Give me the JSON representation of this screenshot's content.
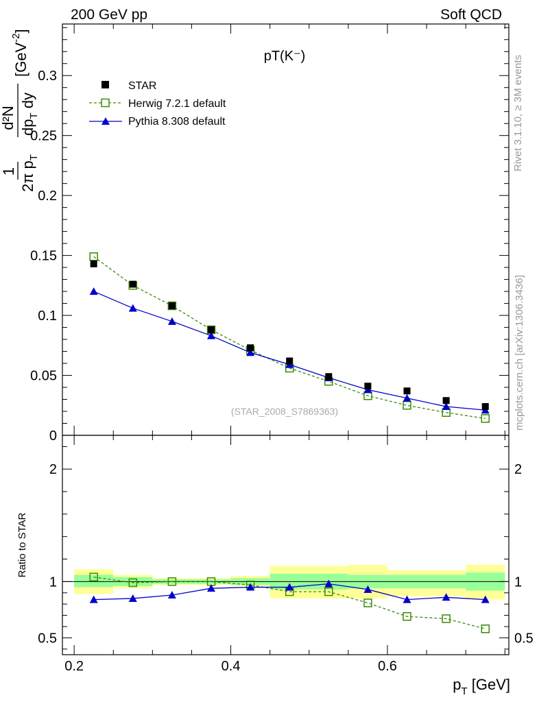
{
  "header": {
    "left": "200 GeV pp",
    "right": "Soft QCD"
  },
  "side_labels": {
    "rivet": "Rivet 3.1.10, ≥ 3M events",
    "mcplots": "mcplots.cern.ch [arXiv:1306.3436]"
  },
  "colors": {
    "star": "#000000",
    "herwig": "#3a8a00",
    "pythia": "#0000cc",
    "band_inner": "#99ff99",
    "band_outer": "#ffff99"
  },
  "chart_data": [
    {
      "type": "scatter",
      "title": "pT(K⁻)",
      "watermark": "(STAR_2008_S7869363)",
      "xlim": [
        0.185,
        0.755
      ],
      "ylim": [
        0,
        0.343
      ],
      "y_ticks": [
        {
          "value": 0,
          "label": "0"
        },
        {
          "value": 0.05,
          "label": "0.05"
        },
        {
          "value": 0.1,
          "label": "0.1"
        },
        {
          "value": 0.15,
          "label": "0.15"
        },
        {
          "value": 0.2,
          "label": "0.2"
        },
        {
          "value": 0.25,
          "label": "0.25"
        },
        {
          "value": 0.3,
          "label": "0.3"
        }
      ],
      "ylabel": {
        "frac_num": "1",
        "frac_den": "2π p",
        "frac_den_sub": "T",
        "main_num": "d²N",
        "main_den": "dp",
        "main_den_sub": "T",
        "main_den_tail": " dy",
        "unit": "[GeV",
        "unit_sup": "-2",
        "unit_tail": "]"
      },
      "legend": {
        "placement": "top-left",
        "entries": [
          "STAR",
          "Herwig 7.2.1 default",
          "Pythia 8.308 default"
        ]
      },
      "series": [
        {
          "name": "STAR",
          "marker": "filled-square",
          "x": [
            0.225,
            0.275,
            0.325,
            0.375,
            0.425,
            0.475,
            0.525,
            0.575,
            0.625,
            0.675,
            0.725
          ],
          "y": [
            0.143,
            0.126,
            0.108,
            0.088,
            0.073,
            0.062,
            0.049,
            0.041,
            0.037,
            0.029,
            0.024
          ]
        },
        {
          "name": "Herwig 7.2.1 default",
          "marker": "open-square",
          "line": "dashed",
          "x": [
            0.225,
            0.275,
            0.325,
            0.375,
            0.425,
            0.475,
            0.525,
            0.575,
            0.625,
            0.675,
            0.725
          ],
          "y": [
            0.149,
            0.125,
            0.108,
            0.088,
            0.071,
            0.056,
            0.045,
            0.033,
            0.025,
            0.019,
            0.014
          ]
        },
        {
          "name": "Pythia 8.308 default",
          "marker": "filled-triangle",
          "line": "solid",
          "x": [
            0.225,
            0.275,
            0.325,
            0.375,
            0.425,
            0.475,
            0.525,
            0.575,
            0.625,
            0.675,
            0.725
          ],
          "y": [
            0.12,
            0.106,
            0.095,
            0.083,
            0.069,
            0.059,
            0.048,
            0.038,
            0.031,
            0.024,
            0.021
          ]
        }
      ]
    },
    {
      "type": "line",
      "ylabel": "Ratio to STAR",
      "xlabel": "p",
      "xlabel_sub": "T",
      "xlabel_tail": " [GeV]",
      "xlim": [
        0.185,
        0.755
      ],
      "ylim": [
        0.35,
        2.3
      ],
      "x_ticks": [
        {
          "value": 0.2,
          "label": "0.2"
        },
        {
          "value": 0.4,
          "label": "0.4"
        },
        {
          "value": 0.6,
          "label": "0.6"
        }
      ],
      "y_ticks": [
        {
          "value": 0.5,
          "label": "0.5"
        },
        {
          "value": 1,
          "label": "1"
        },
        {
          "value": 2,
          "label": "2"
        }
      ],
      "bands": [
        {
          "x0": 0.2,
          "x1": 0.25,
          "inner": [
            0.95,
            1.06
          ],
          "outer": [
            0.89,
            1.11
          ]
        },
        {
          "x0": 0.25,
          "x1": 0.3,
          "inner": [
            0.96,
            1.04
          ],
          "outer": [
            0.94,
            1.06
          ]
        },
        {
          "x0": 0.3,
          "x1": 0.35,
          "inner": [
            0.98,
            1.02
          ],
          "outer": [
            0.97,
            1.03
          ]
        },
        {
          "x0": 0.35,
          "x1": 0.4,
          "inner": [
            0.98,
            1.02
          ],
          "outer": [
            0.97,
            1.03
          ]
        },
        {
          "x0": 0.4,
          "x1": 0.45,
          "inner": [
            0.97,
            1.03
          ],
          "outer": [
            0.96,
            1.05
          ]
        },
        {
          "x0": 0.45,
          "x1": 0.55,
          "inner": [
            0.93,
            1.07
          ],
          "outer": [
            0.85,
            1.14
          ]
        },
        {
          "x0": 0.55,
          "x1": 0.6,
          "inner": [
            0.94,
            1.06
          ],
          "outer": [
            0.85,
            1.15
          ]
        },
        {
          "x0": 0.6,
          "x1": 0.7,
          "inner": [
            0.94,
            1.06
          ],
          "outer": [
            0.87,
            1.1
          ]
        },
        {
          "x0": 0.7,
          "x1": 0.75,
          "inner": [
            0.92,
            1.08
          ],
          "outer": [
            0.84,
            1.15
          ]
        }
      ],
      "series": [
        {
          "name": "Herwig 7.2.1 default",
          "marker": "open-square",
          "line": "dashed",
          "x": [
            0.225,
            0.275,
            0.325,
            0.375,
            0.425,
            0.475,
            0.525,
            0.575,
            0.625,
            0.675,
            0.725
          ],
          "y": [
            1.04,
            0.99,
            1.0,
            1.0,
            0.97,
            0.91,
            0.91,
            0.81,
            0.69,
            0.67,
            0.58
          ]
        },
        {
          "name": "Pythia 8.308 default",
          "marker": "filled-triangle",
          "line": "solid",
          "x": [
            0.225,
            0.275,
            0.325,
            0.375,
            0.425,
            0.475,
            0.525,
            0.575,
            0.625,
            0.675,
            0.725
          ],
          "y": [
            0.84,
            0.85,
            0.88,
            0.94,
            0.95,
            0.95,
            0.98,
            0.93,
            0.84,
            0.86,
            0.84
          ]
        }
      ]
    }
  ]
}
